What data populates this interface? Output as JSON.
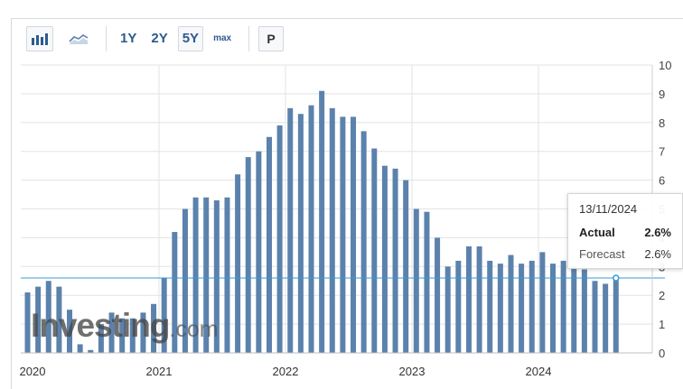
{
  "toolbar": {
    "bar_chart_icon": "bar-chart-icon",
    "area_chart_icon": "area-chart-icon",
    "range_buttons": [
      "1Y",
      "2Y",
      "5Y",
      "max"
    ],
    "selected_range": "5Y",
    "p_button": "P"
  },
  "watermark": {
    "brand": "Investing",
    "suffix": ".com"
  },
  "tooltip": {
    "date": "13/11/2024",
    "actual_label": "Actual",
    "actual_value": "2.6%",
    "forecast_label": "Forecast",
    "forecast_value": "2.6%"
  },
  "colors": {
    "bar": "#5b82ac",
    "forecast_line": "#3a9bd4",
    "grid": "#e3e3e3"
  },
  "chart_data": {
    "type": "bar",
    "title": "",
    "xlabel": "",
    "ylabel": "",
    "ylim": [
      0,
      10
    ],
    "yticks": [
      0,
      1,
      2,
      3,
      4,
      5,
      6,
      7,
      8,
      9,
      10
    ],
    "xtick_labels": [
      "2020",
      "2021",
      "2022",
      "2023",
      "2024"
    ],
    "grid": true,
    "forecast_line_value": 2.6,
    "series": [
      {
        "values": [
          2.1,
          2.3,
          2.5,
          2.3,
          1.5,
          0.3,
          0.1,
          1.0,
          1.4,
          1.2,
          1.2,
          1.4,
          1.7,
          2.6,
          4.2,
          5.0,
          5.4,
          5.4,
          5.3,
          5.4,
          6.2,
          6.8,
          7.0,
          7.5,
          7.9,
          8.5,
          8.3,
          8.6,
          9.1,
          8.5,
          8.2,
          8.2,
          7.7,
          7.1,
          6.5,
          6.4,
          6.0,
          5.0,
          4.9,
          4.0,
          3.0,
          3.2,
          3.7,
          3.7,
          3.2,
          3.1,
          3.4,
          3.1,
          3.2,
          3.5,
          3.1,
          3.2,
          3.0,
          2.9,
          2.5,
          2.4,
          2.6
        ],
        "labels": [
          "Jan 2020",
          "Feb 2020",
          "Mar 2020",
          "Apr 2020",
          "May 2020",
          "Jun 2020",
          "Jul 2020",
          "Aug 2020",
          "Sep 2020",
          "Oct 2020",
          "Nov 2020",
          "Dec 2020",
          "Jan 2021",
          "Feb 2021",
          "Mar 2021",
          "Apr 2021",
          "May 2021",
          "Jun 2021",
          "Jul 2021",
          "Aug 2021",
          "Sep 2021",
          "Oct 2021",
          "Nov 2021",
          "Dec 2021",
          "Jan 2022",
          "Feb 2022",
          "Mar 2022",
          "Apr 2022",
          "May 2022",
          "Jun 2022",
          "Jul 2022",
          "Aug 2022",
          "Sep 2022",
          "Oct 2022",
          "Nov 2022",
          "Dec 2022",
          "Jan 2023",
          "Feb 2023",
          "Mar 2023",
          "Apr 2023",
          "May 2023",
          "Jun 2023",
          "Jul 2023",
          "Aug 2023",
          "Sep 2023",
          "Oct 2023",
          "Nov 2023",
          "Dec 2023",
          "Jan 2024",
          "Feb 2024",
          "Mar 2024",
          "Apr 2024",
          "May 2024",
          "Jun 2024",
          "Jul 2024",
          "Aug 2024",
          "Sep 2024"
        ]
      }
    ]
  }
}
